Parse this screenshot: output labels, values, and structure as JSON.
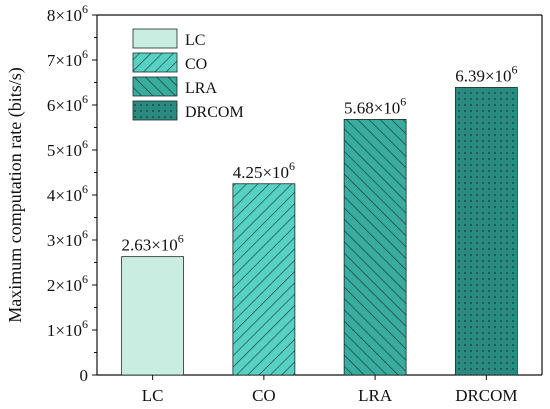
{
  "chart_data": {
    "type": "bar",
    "title": "",
    "xlabel": "",
    "ylabel": "Maximum computation rate (bits/s)",
    "categories": [
      "LC",
      "CO",
      "LRA",
      "DRCOM"
    ],
    "values": [
      2630000,
      4250000,
      5680000,
      6390000
    ],
    "value_labels": [
      "2.63×10",
      "4.25×10",
      "5.68×10",
      "6.39×10"
    ],
    "value_label_exponent": "6",
    "ylim": [
      0,
      8000000
    ],
    "yticks": [
      {
        "mantissa": "0",
        "exp": ""
      },
      {
        "mantissa": "1×10",
        "exp": "6"
      },
      {
        "mantissa": "2×10",
        "exp": "6"
      },
      {
        "mantissa": "3×10",
        "exp": "6"
      },
      {
        "mantissa": "4×10",
        "exp": "6"
      },
      {
        "mantissa": "5×10",
        "exp": "6"
      },
      {
        "mantissa": "6×10",
        "exp": "6"
      },
      {
        "mantissa": "7×10",
        "exp": "6"
      },
      {
        "mantissa": "8×10",
        "exp": "6"
      }
    ],
    "ytick_values": [
      0,
      1000000,
      2000000,
      3000000,
      4000000,
      5000000,
      6000000,
      7000000,
      8000000
    ],
    "grid": false,
    "legend": {
      "placement": "top-left",
      "entries": [
        "LC",
        "CO",
        "LRA",
        "DRCOM"
      ]
    },
    "series_style": [
      {
        "fill": "#c9ede0",
        "pattern": "solid"
      },
      {
        "fill": "#56d1c4",
        "pattern": "hatch-right"
      },
      {
        "fill": "#38ad9f",
        "pattern": "hatch-left"
      },
      {
        "fill": "#2a8a80",
        "pattern": "dots"
      }
    ]
  }
}
